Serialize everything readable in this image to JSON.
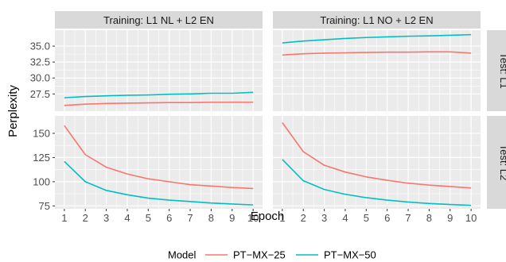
{
  "chart_data": {
    "type": "line",
    "xlabel": "Epoch",
    "ylabel": "Perplexity",
    "x": [
      1,
      2,
      3,
      4,
      5,
      6,
      7,
      8,
      9,
      10
    ],
    "x_ticks": [
      "1",
      "2",
      "3",
      "4",
      "5",
      "6",
      "7",
      "8",
      "9",
      "10"
    ],
    "xlim": [
      0.55,
      10.45
    ],
    "grid": true,
    "columns": [
      "Training: L1 NL + L2 EN",
      "Training: L1 NO + L2 EN"
    ],
    "rows": [
      {
        "label": "Test: L1",
        "ylim": [
          24.8,
          37.5
        ],
        "y_ticks": [
          27.5,
          30.0,
          32.5,
          35.0
        ],
        "y_tick_labels": [
          "27.5",
          "30.0",
          "32.5",
          "35.0"
        ]
      },
      {
        "label": "Test: L2",
        "ylim": [
          72,
          168
        ],
        "y_ticks": [
          75,
          100,
          125,
          150
        ],
        "y_tick_labels": [
          "75",
          "100",
          "125",
          "150"
        ]
      }
    ],
    "legend": {
      "title": "Model",
      "position": "bottom",
      "entries": [
        {
          "name": "PT−MX−25",
          "color": "#F8766D"
        },
        {
          "name": "PT−MX−50",
          "color": "#00BFC4"
        }
      ]
    },
    "panels": [
      {
        "row": 0,
        "col": 0,
        "series": [
          {
            "name": "PT−MX−25",
            "values": [
              25.7,
              25.9,
              26.0,
              26.05,
              26.1,
              26.15,
              26.15,
              26.2,
              26.2,
              26.2
            ]
          },
          {
            "name": "PT−MX−50",
            "values": [
              26.9,
              27.1,
              27.2,
              27.3,
              27.35,
              27.45,
              27.5,
              27.6,
              27.6,
              27.75
            ]
          }
        ]
      },
      {
        "row": 0,
        "col": 1,
        "series": [
          {
            "name": "PT−MX−25",
            "values": [
              33.6,
              33.8,
              33.9,
              33.95,
              34.0,
              34.05,
              34.05,
              34.1,
              34.1,
              33.9
            ]
          },
          {
            "name": "PT−MX−50",
            "values": [
              35.5,
              35.8,
              36.0,
              36.2,
              36.35,
              36.45,
              36.55,
              36.6,
              36.7,
              36.8
            ]
          }
        ]
      },
      {
        "row": 1,
        "col": 0,
        "series": [
          {
            "name": "PT−MX−25",
            "values": [
              158,
              128,
              115,
              108,
              103,
              100,
              97,
              95.5,
              94,
              93
            ]
          },
          {
            "name": "PT−MX−50",
            "values": [
              121,
              100,
              91,
              86.5,
              83,
              81,
              79.5,
              78,
              77,
              76
            ]
          }
        ]
      },
      {
        "row": 1,
        "col": 1,
        "series": [
          {
            "name": "PT−MX−25",
            "values": [
              161,
              131,
              117,
              110,
              105,
              101.5,
              98.5,
              96.5,
              95,
              93.5
            ]
          },
          {
            "name": "PT−MX−50",
            "values": [
              123,
              101,
              92,
              87,
              83.5,
              81,
              79,
              77.5,
              76.5,
              75.5
            ]
          }
        ]
      }
    ]
  }
}
